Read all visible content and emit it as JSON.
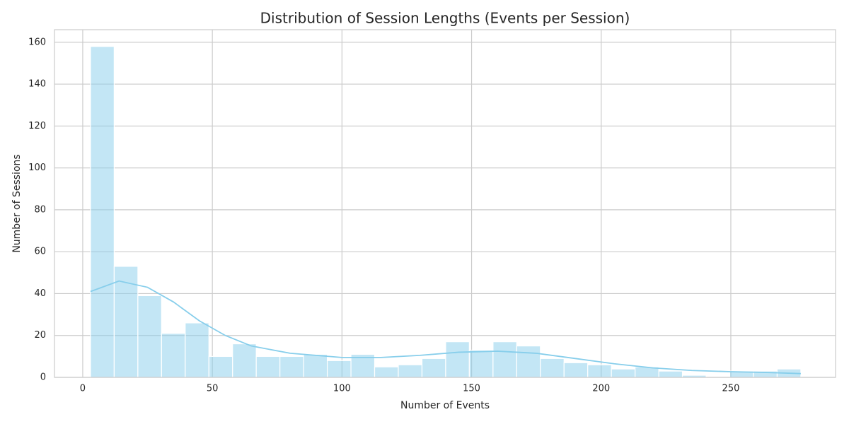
{
  "chart_data": {
    "type": "histogram",
    "title": "Distribution of Session Lengths (Events per Session)",
    "xlabel": "Number of Events",
    "ylabel": "Number of Sessions",
    "bins": [
      3,
      12.13,
      21.27,
      30.4,
      39.53,
      48.67,
      57.8,
      66.93,
      76.07,
      85.2,
      94.33,
      103.47,
      112.6,
      121.73,
      130.87,
      140,
      149.13,
      158.27,
      167.4,
      176.53,
      185.67,
      194.8,
      203.93,
      213.07,
      222.2,
      231.33,
      240.47,
      249.6,
      258.73,
      267.87,
      277
    ],
    "counts": [
      158,
      53,
      39,
      21,
      26,
      10,
      16,
      10,
      10,
      11,
      8,
      11,
      5,
      6,
      9,
      17,
      13,
      17,
      15,
      9,
      7,
      6,
      4,
      5,
      3,
      1,
      0,
      3,
      3,
      4
    ],
    "color": "#87ceeb",
    "kde": {
      "x": [
        3,
        14,
        25,
        35,
        45,
        55,
        65,
        80,
        100,
        115,
        130,
        145,
        160,
        175,
        190,
        205,
        220,
        235,
        250,
        265,
        277
      ],
      "values": [
        41,
        46,
        43,
        36,
        27,
        20,
        15,
        11.5,
        9.5,
        9.5,
        10.5,
        12,
        12.5,
        11.5,
        9,
        6.5,
        4.5,
        3.3,
        2.7,
        2.3,
        1.8
      ]
    },
    "xlim": [
      -10.9,
      290.4
    ],
    "ylim": [
      0,
      166
    ],
    "xticks": [
      0,
      50,
      100,
      150,
      200,
      250
    ],
    "yticks": [
      0,
      20,
      40,
      60,
      80,
      100,
      120,
      140,
      160
    ],
    "grid": true
  }
}
